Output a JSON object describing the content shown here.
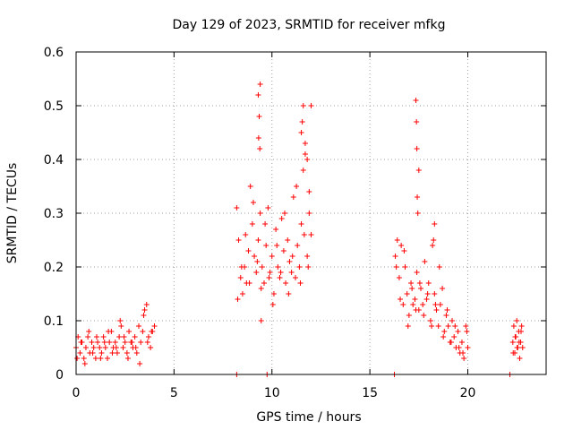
{
  "chart_data": {
    "type": "scatter",
    "title": "Day 129 of 2023, SRMTID for receiver mfkg",
    "xlabel": "GPS time / hours",
    "ylabel": "SRMTID / TECUs",
    "xlim": [
      0,
      24
    ],
    "ylim": [
      0,
      0.6
    ],
    "xticks": [
      0,
      5,
      10,
      15,
      20
    ],
    "yticks": [
      0,
      0.1,
      0.2,
      0.3,
      0.4,
      0.5,
      0.6
    ],
    "xtick_labels": [
      "0",
      "5",
      "10",
      "15",
      "20"
    ],
    "ytick_labels": [
      "0",
      "0.1",
      "0.2",
      "0.3",
      "0.4",
      "0.5",
      "0.6"
    ],
    "grid": true,
    "marker": "+",
    "color": "#ff0000",
    "series": [
      {
        "name": "SRMTID",
        "x": [
          0.0,
          0.1,
          0.2,
          0.3,
          0.4,
          0.5,
          0.6,
          0.7,
          0.8,
          0.9,
          1.0,
          1.1,
          1.2,
          1.3,
          1.4,
          1.5,
          1.6,
          1.7,
          1.8,
          1.9,
          2.0,
          2.1,
          2.2,
          2.3,
          2.4,
          2.5,
          2.6,
          2.7,
          2.8,
          2.9,
          3.0,
          3.1,
          3.2,
          3.3,
          3.4,
          3.5,
          3.6,
          3.7,
          3.8,
          3.9,
          4.0,
          0.05,
          0.25,
          0.45,
          0.65,
          0.85,
          1.05,
          1.25,
          1.45,
          1.65,
          1.85,
          2.05,
          2.25,
          2.45,
          2.65,
          2.85,
          3.05,
          3.25,
          3.45,
          3.65,
          3.85,
          8.2,
          8.3,
          8.4,
          8.5,
          8.6,
          8.7,
          8.8,
          8.9,
          9.0,
          9.1,
          9.2,
          9.3,
          9.4,
          9.5,
          9.6,
          9.7,
          9.8,
          9.9,
          10.0,
          10.1,
          10.2,
          10.3,
          10.4,
          10.5,
          10.6,
          10.7,
          10.8,
          10.9,
          11.0,
          11.1,
          11.2,
          11.3,
          11.4,
          11.5,
          11.6,
          11.7,
          11.8,
          11.9,
          12.0,
          8.25,
          8.45,
          8.65,
          8.85,
          9.05,
          9.25,
          9.45,
          9.65,
          9.85,
          10.05,
          10.25,
          10.45,
          10.65,
          10.85,
          11.05,
          11.25,
          11.45,
          11.65,
          11.85,
          9.3,
          9.35,
          9.4,
          9.32,
          9.38,
          9.45,
          11.5,
          11.55,
          11.6,
          11.7,
          11.8,
          11.9,
          12.0,
          16.3,
          16.4,
          16.5,
          16.6,
          16.7,
          16.8,
          16.9,
          17.0,
          17.1,
          17.2,
          17.3,
          17.4,
          17.5,
          17.6,
          17.7,
          17.8,
          17.9,
          18.0,
          18.1,
          18.2,
          18.3,
          18.4,
          18.5,
          18.6,
          18.7,
          18.8,
          18.9,
          19.0,
          19.1,
          19.2,
          19.3,
          19.4,
          19.5,
          19.6,
          19.7,
          19.8,
          19.9,
          20.0,
          16.35,
          16.55,
          16.75,
          16.95,
          17.15,
          17.35,
          17.55,
          17.75,
          17.95,
          18.15,
          18.35,
          18.55,
          18.75,
          18.95,
          19.15,
          19.35,
          19.55,
          19.75,
          19.95,
          17.35,
          17.38,
          17.4,
          17.42,
          17.45,
          17.5,
          18.3,
          18.25,
          22.3,
          22.35,
          22.4,
          22.45,
          22.5,
          22.55,
          22.6,
          22.65,
          22.7,
          22.75,
          22.8,
          22.32,
          22.42,
          22.52,
          22.62,
          22.72,
          8.2,
          9.75,
          16.25,
          22.15
        ],
        "y": [
          0.05,
          0.07,
          0.04,
          0.06,
          0.03,
          0.05,
          0.07,
          0.04,
          0.06,
          0.05,
          0.03,
          0.06,
          0.05,
          0.04,
          0.07,
          0.05,
          0.03,
          0.06,
          0.08,
          0.05,
          0.06,
          0.04,
          0.07,
          0.09,
          0.05,
          0.06,
          0.04,
          0.08,
          0.06,
          0.05,
          0.07,
          0.04,
          0.09,
          0.06,
          0.08,
          0.12,
          0.13,
          0.07,
          0.05,
          0.08,
          0.09,
          0.03,
          0.06,
          0.02,
          0.08,
          0.04,
          0.07,
          0.03,
          0.06,
          0.08,
          0.04,
          0.05,
          0.1,
          0.07,
          0.03,
          0.06,
          0.05,
          0.02,
          0.11,
          0.06,
          0.08,
          0.31,
          0.25,
          0.18,
          0.15,
          0.2,
          0.17,
          0.23,
          0.35,
          0.28,
          0.22,
          0.19,
          0.25,
          0.3,
          0.2,
          0.17,
          0.24,
          0.31,
          0.19,
          0.22,
          0.15,
          0.27,
          0.2,
          0.18,
          0.29,
          0.23,
          0.17,
          0.25,
          0.21,
          0.19,
          0.33,
          0.18,
          0.24,
          0.2,
          0.28,
          0.38,
          0.41,
          0.22,
          0.3,
          0.26,
          0.14,
          0.2,
          0.26,
          0.17,
          0.32,
          0.21,
          0.16,
          0.28,
          0.18,
          0.13,
          0.24,
          0.19,
          0.3,
          0.15,
          0.22,
          0.35,
          0.17,
          0.26,
          0.2,
          0.52,
          0.48,
          0.54,
          0.44,
          0.42,
          0.1,
          0.45,
          0.47,
          0.5,
          0.43,
          0.4,
          0.34,
          0.5,
          0.22,
          0.25,
          0.18,
          0.24,
          0.13,
          0.2,
          0.15,
          0.11,
          0.17,
          0.13,
          0.14,
          0.19,
          0.12,
          0.16,
          0.13,
          0.21,
          0.14,
          0.17,
          0.1,
          0.24,
          0.15,
          0.12,
          0.09,
          0.13,
          0.16,
          0.08,
          0.11,
          0.09,
          0.06,
          0.1,
          0.07,
          0.05,
          0.08,
          0.04,
          0.06,
          0.03,
          0.09,
          0.05,
          0.2,
          0.14,
          0.23,
          0.09,
          0.16,
          0.12,
          0.17,
          0.11,
          0.15,
          0.09,
          0.13,
          0.2,
          0.07,
          0.12,
          0.06,
          0.09,
          0.05,
          0.04,
          0.08,
          0.51,
          0.47,
          0.42,
          0.33,
          0.3,
          0.38,
          0.28,
          0.25,
          0.06,
          0.09,
          0.04,
          0.07,
          0.1,
          0.05,
          0.08,
          0.03,
          0.06,
          0.09,
          0.05,
          0.04,
          0.07,
          0.05,
          0.06,
          0.08,
          0.0,
          0.0,
          0.0,
          0.0
        ]
      }
    ]
  }
}
